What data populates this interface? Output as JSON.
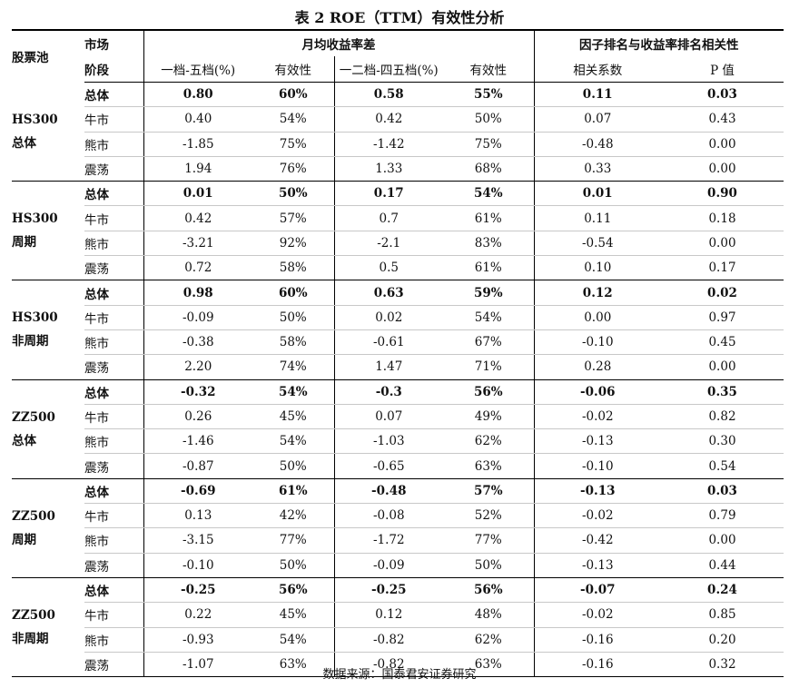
{
  "title": "表 2 ROE（TTM）有效性分析",
  "headers": {
    "pool": "股票池",
    "market_line1": "市场",
    "market_line2": "阶段",
    "group_return_spread": "月均收益率差",
    "group_correlation": "因子排名与收益率排名相关性",
    "col_spread_1_5": "一档-五档(%)",
    "col_eff_1": "有效性",
    "col_spread_12_45": "一二档-四五档(%)",
    "col_eff_2": "有效性",
    "col_corr": "相关系数",
    "col_p": "P 值"
  },
  "groups": [
    {
      "pool_line1": "HS300",
      "pool_line2": "总体",
      "rows": [
        {
          "stage": "总体",
          "s1": "0.80",
          "e1": "60%",
          "s2": "0.58",
          "e2": "55%",
          "c": "0.11",
          "p": "0.03"
        },
        {
          "stage": "牛市",
          "s1": "0.40",
          "e1": "54%",
          "s2": "0.42",
          "e2": "50%",
          "c": "0.07",
          "p": "0.43"
        },
        {
          "stage": "熊市",
          "s1": "-1.85",
          "e1": "75%",
          "s2": "-1.42",
          "e2": "75%",
          "c": "-0.48",
          "p": "0.00"
        },
        {
          "stage": "震荡",
          "s1": "1.94",
          "e1": "76%",
          "s2": "1.33",
          "e2": "68%",
          "c": "0.33",
          "p": "0.00"
        }
      ]
    },
    {
      "pool_line1": "HS300",
      "pool_line2": "周期",
      "rows": [
        {
          "stage": "总体",
          "s1": "0.01",
          "e1": "50%",
          "s2": "0.17",
          "e2": "54%",
          "c": "0.01",
          "p": "0.90"
        },
        {
          "stage": "牛市",
          "s1": "0.42",
          "e1": "57%",
          "s2": "0.7",
          "e2": "61%",
          "c": "0.11",
          "p": "0.18"
        },
        {
          "stage": "熊市",
          "s1": "-3.21",
          "e1": "92%",
          "s2": "-2.1",
          "e2": "83%",
          "c": "-0.54",
          "p": "0.00"
        },
        {
          "stage": "震荡",
          "s1": "0.72",
          "e1": "58%",
          "s2": "0.5",
          "e2": "61%",
          "c": "0.10",
          "p": "0.17"
        }
      ]
    },
    {
      "pool_line1": "HS300",
      "pool_line2": "非周期",
      "rows": [
        {
          "stage": "总体",
          "s1": "0.98",
          "e1": "60%",
          "s2": "0.63",
          "e2": "59%",
          "c": "0.12",
          "p": "0.02"
        },
        {
          "stage": "牛市",
          "s1": "-0.09",
          "e1": "50%",
          "s2": "0.02",
          "e2": "54%",
          "c": "0.00",
          "p": "0.97"
        },
        {
          "stage": "熊市",
          "s1": "-0.38",
          "e1": "58%",
          "s2": "-0.61",
          "e2": "67%",
          "c": "-0.10",
          "p": "0.45"
        },
        {
          "stage": "震荡",
          "s1": "2.20",
          "e1": "74%",
          "s2": "1.47",
          "e2": "71%",
          "c": "0.28",
          "p": "0.00"
        }
      ]
    },
    {
      "pool_line1": "ZZ500",
      "pool_line2": "总体",
      "rows": [
        {
          "stage": "总体",
          "s1": "-0.32",
          "e1": "54%",
          "s2": "-0.3",
          "e2": "56%",
          "c": "-0.06",
          "p": "0.35"
        },
        {
          "stage": "牛市",
          "s1": "0.26",
          "e1": "45%",
          "s2": "0.07",
          "e2": "49%",
          "c": "-0.02",
          "p": "0.82"
        },
        {
          "stage": "熊市",
          "s1": "-1.46",
          "e1": "54%",
          "s2": "-1.03",
          "e2": "62%",
          "c": "-0.13",
          "p": "0.30"
        },
        {
          "stage": "震荡",
          "s1": "-0.87",
          "e1": "50%",
          "s2": "-0.65",
          "e2": "63%",
          "c": "-0.10",
          "p": "0.54"
        }
      ]
    },
    {
      "pool_line1": "ZZ500",
      "pool_line2": "周期",
      "rows": [
        {
          "stage": "总体",
          "s1": "-0.69",
          "e1": "61%",
          "s2": "-0.48",
          "e2": "57%",
          "c": "-0.13",
          "p": "0.03"
        },
        {
          "stage": "牛市",
          "s1": "0.13",
          "e1": "42%",
          "s2": "-0.08",
          "e2": "52%",
          "c": "-0.02",
          "p": "0.79"
        },
        {
          "stage": "熊市",
          "s1": "-3.15",
          "e1": "77%",
          "s2": "-1.72",
          "e2": "77%",
          "c": "-0.42",
          "p": "0.00"
        },
        {
          "stage": "震荡",
          "s1": "-0.10",
          "e1": "50%",
          "s2": "-0.09",
          "e2": "50%",
          "c": "-0.13",
          "p": "0.44"
        }
      ]
    },
    {
      "pool_line1": "ZZ500",
      "pool_line2": "非周期",
      "rows": [
        {
          "stage": "总体",
          "s1": "-0.25",
          "e1": "56%",
          "s2": "-0.25",
          "e2": "56%",
          "c": "-0.07",
          "p": "0.24"
        },
        {
          "stage": "牛市",
          "s1": "0.22",
          "e1": "45%",
          "s2": "0.12",
          "e2": "48%",
          "c": "-0.02",
          "p": "0.85"
        },
        {
          "stage": "熊市",
          "s1": "-0.93",
          "e1": "54%",
          "s2": "-0.82",
          "e2": "62%",
          "c": "-0.16",
          "p": "0.20"
        },
        {
          "stage": "震荡",
          "s1": "-1.07",
          "e1": "63%",
          "s2": "-0.82",
          "e2": "63%",
          "c": "-0.16",
          "p": "0.32"
        }
      ]
    }
  ],
  "footer": "数据来源：国泰君安证券研究"
}
